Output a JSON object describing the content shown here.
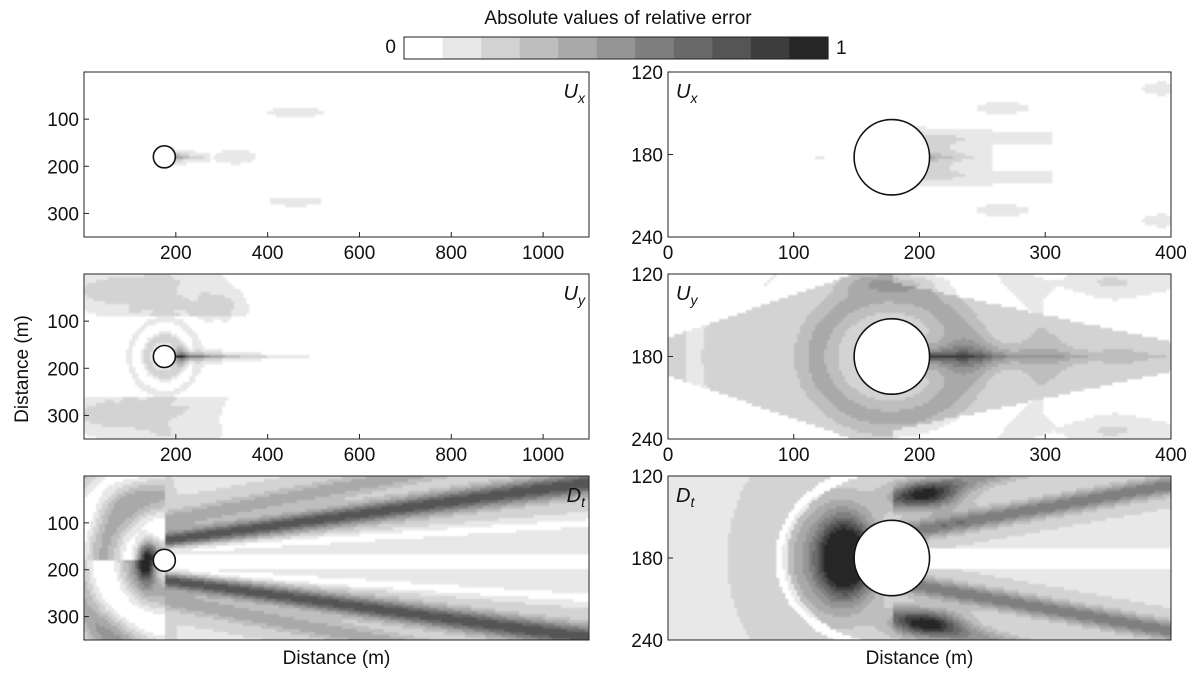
{
  "chart_data": {
    "type": "heatmap",
    "colorbar": {
      "title": "Absolute values of relative error",
      "min_label": "0",
      "max_label": "1",
      "range": [
        0,
        1
      ],
      "levels": 11,
      "colors": [
        "#ffffff",
        "#e8e8e8",
        "#d3d3d3",
        "#bebebe",
        "#a9a9a9",
        "#959595",
        "#7f7f7f",
        "#6a6a6a",
        "#555555",
        "#3d3d3d",
        "#262626"
      ]
    },
    "shared_xlabel": "Distance (m)",
    "shared_ylabel": "Distance (m)",
    "panels": [
      {
        "id": "ux-full",
        "label_base": "U",
        "label_sub": "x",
        "label_corner": "top-right",
        "xlim": [
          0,
          1100
        ],
        "ylim": [
          350,
          0
        ],
        "xticks": [
          "200",
          "400",
          "600",
          "800",
          "1000"
        ],
        "yticks": [
          "100",
          "200",
          "300"
        ],
        "xlabel": "",
        "circle": {
          "x": 175,
          "y": 180,
          "r": 35
        },
        "field": "ux"
      },
      {
        "id": "ux-zoom",
        "label_base": "U",
        "label_sub": "x",
        "label_corner": "top-left",
        "xlim": [
          0,
          400
        ],
        "ylim": [
          240,
          120
        ],
        "xticks": [
          "0",
          "100",
          "200",
          "300",
          "400"
        ],
        "yticks": [
          "120",
          "180",
          "240"
        ],
        "xlabel": "",
        "circle": {
          "x": 178,
          "y": 182,
          "r": 30
        },
        "field": "ux"
      },
      {
        "id": "uy-full",
        "label_base": "U",
        "label_sub": "y",
        "label_corner": "top-right",
        "xlim": [
          0,
          1100
        ],
        "ylim": [
          350,
          0
        ],
        "xticks": [
          "200",
          "400",
          "600",
          "800",
          "1000"
        ],
        "yticks": [
          "100",
          "200",
          "300"
        ],
        "xlabel": "",
        "circle": {
          "x": 175,
          "y": 175,
          "r": 35
        },
        "field": "uy"
      },
      {
        "id": "uy-zoom",
        "label_base": "U",
        "label_sub": "y",
        "label_corner": "top-left",
        "xlim": [
          0,
          400
        ],
        "ylim": [
          240,
          120
        ],
        "xticks": [
          "0",
          "100",
          "200",
          "300",
          "400"
        ],
        "yticks": [
          "120",
          "180",
          "240"
        ],
        "xlabel": "",
        "circle": {
          "x": 178,
          "y": 180,
          "r": 30
        },
        "field": "uy"
      },
      {
        "id": "dt-full",
        "label_base": "D",
        "label_sub": "t",
        "label_corner": "top-right",
        "xlim": [
          0,
          1100
        ],
        "ylim": [
          350,
          0
        ],
        "xticks": [],
        "yticks": [
          "100",
          "200",
          "300"
        ],
        "xlabel": "Distance (m)",
        "circle": {
          "x": 175,
          "y": 180,
          "r": 35
        },
        "field": "dt"
      },
      {
        "id": "dt-zoom",
        "label_base": "D",
        "label_sub": "t",
        "label_corner": "top-left",
        "xlim": [
          0,
          400
        ],
        "ylim": [
          240,
          120
        ],
        "xticks": [],
        "yticks": [
          "120",
          "180",
          "240"
        ],
        "xlabel": "Distance (m)",
        "circle": {
          "x": 178,
          "y": 180,
          "r": 30
        },
        "field": "dt"
      }
    ]
  }
}
